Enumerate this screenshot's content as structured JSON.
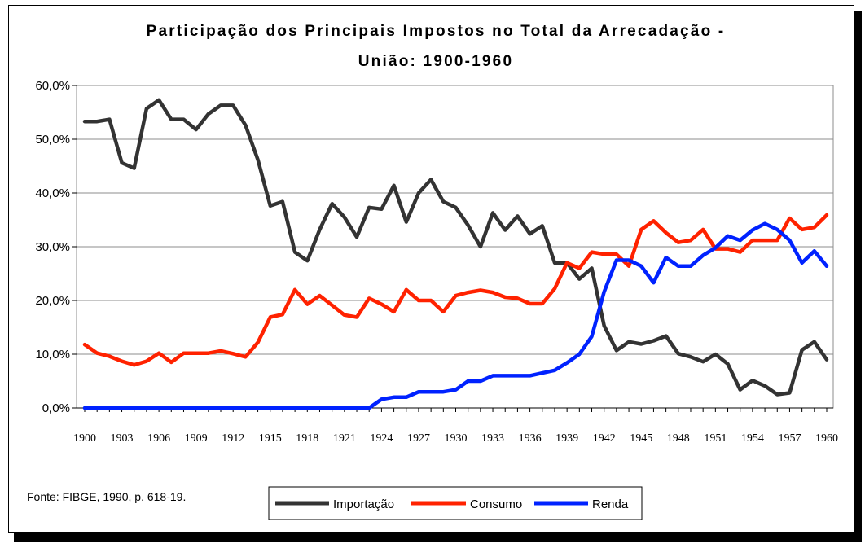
{
  "chart_data": {
    "type": "line",
    "title_lines": [
      "Participação dos Principais Impostos no Total da Arrecadação -",
      "União: 1900-1960"
    ],
    "source": "Fonte: FIBGE, 1990, p. 618-19.",
    "y_tick_labels": [
      "60,0%",
      "50,0%",
      "40,0%",
      "30,0%",
      "20,0%",
      "10,0%",
      "0,0%"
    ],
    "ylim": [
      0,
      60
    ],
    "xlim": [
      1900,
      1960
    ],
    "x_tick_labels": [
      "1900",
      "1903",
      "1906",
      "1909",
      "1912",
      "1915",
      "1918",
      "1921",
      "1924",
      "1927",
      "1930",
      "1933",
      "1936",
      "1939",
      "1942",
      "1945",
      "1948",
      "1951",
      "1954",
      "1957",
      "1960"
    ],
    "grid": "horizontal",
    "legend_position": "bottom",
    "series": [
      {
        "name": "Importação",
        "color": "#333333",
        "x": [
          1900,
          1901,
          1902,
          1903,
          1904,
          1905,
          1906,
          1907,
          1908,
          1909,
          1910,
          1911,
          1912,
          1913,
          1914,
          1915,
          1916,
          1917,
          1918,
          1919,
          1920,
          1921,
          1922,
          1923,
          1924,
          1925,
          1926,
          1927,
          1928,
          1929,
          1930,
          1931,
          1932,
          1933,
          1934,
          1935,
          1936,
          1937,
          1938,
          1939,
          1940,
          1941,
          1942,
          1943,
          1944,
          1945,
          1946,
          1947,
          1948,
          1949,
          1950,
          1951,
          1952,
          1953,
          1954,
          1955,
          1956,
          1957,
          1958,
          1959,
          1960
        ],
        "values": [
          53.3,
          53.3,
          53.7,
          45.6,
          44.6,
          55.7,
          57.3,
          53.7,
          53.7,
          51.8,
          54.7,
          56.3,
          56.3,
          52.6,
          46.2,
          37.6,
          38.4,
          29.0,
          27.4,
          33.2,
          38.0,
          35.5,
          31.8,
          37.3,
          37.0,
          41.4,
          34.6,
          40.0,
          42.5,
          38.4,
          37.3,
          34.0,
          30.0,
          36.3,
          33.1,
          35.7,
          32.4,
          33.9,
          27.0,
          27.0,
          24.0,
          26.0,
          15.3,
          10.7,
          12.3,
          11.9,
          12.5,
          13.4,
          10.1,
          9.5,
          8.6,
          10.0,
          8.2,
          3.4,
          5.1,
          4.1,
          2.5,
          2.8,
          10.8,
          12.3,
          9.0
        ]
      },
      {
        "name": "Consumo",
        "color": "#ff2200",
        "x": [
          1900,
          1901,
          1902,
          1903,
          1904,
          1905,
          1906,
          1907,
          1908,
          1909,
          1910,
          1911,
          1912,
          1913,
          1914,
          1915,
          1916,
          1917,
          1918,
          1919,
          1920,
          1921,
          1922,
          1923,
          1924,
          1925,
          1926,
          1927,
          1928,
          1929,
          1930,
          1931,
          1932,
          1933,
          1934,
          1935,
          1936,
          1937,
          1938,
          1939,
          1940,
          1941,
          1942,
          1943,
          1944,
          1945,
          1946,
          1947,
          1948,
          1949,
          1950,
          1951,
          1952,
          1953,
          1954,
          1955,
          1956,
          1957,
          1958,
          1959,
          1960
        ],
        "values": [
          11.8,
          10.2,
          9.6,
          8.7,
          8.0,
          8.7,
          10.2,
          8.5,
          10.2,
          10.2,
          10.2,
          10.6,
          10.1,
          9.5,
          12.2,
          16.9,
          17.4,
          22.0,
          19.3,
          20.9,
          19.1,
          17.3,
          16.9,
          20.4,
          19.3,
          17.9,
          22.0,
          20.0,
          20.0,
          17.9,
          20.9,
          21.5,
          21.9,
          21.5,
          20.6,
          20.4,
          19.4,
          19.4,
          22.2,
          27.0,
          26.0,
          29.0,
          28.6,
          28.6,
          26.4,
          33.2,
          34.8,
          32.6,
          30.8,
          31.2,
          33.2,
          29.6,
          29.6,
          29.0,
          31.2,
          31.2,
          31.2,
          35.3,
          33.2,
          33.6,
          35.9
        ]
      },
      {
        "name": "Renda",
        "color": "#0022ff",
        "x": [
          1900,
          1901,
          1902,
          1903,
          1904,
          1905,
          1906,
          1907,
          1908,
          1909,
          1910,
          1911,
          1912,
          1913,
          1914,
          1915,
          1916,
          1917,
          1918,
          1919,
          1920,
          1921,
          1922,
          1923,
          1924,
          1925,
          1926,
          1927,
          1928,
          1929,
          1930,
          1931,
          1932,
          1933,
          1934,
          1935,
          1936,
          1937,
          1938,
          1939,
          1940,
          1941,
          1942,
          1943,
          1944,
          1945,
          1946,
          1947,
          1948,
          1949,
          1950,
          1951,
          1952,
          1953,
          1954,
          1955,
          1956,
          1957,
          1958,
          1959,
          1960
        ],
        "values": [
          0,
          0,
          0,
          0,
          0,
          0,
          0,
          0,
          0,
          0,
          0,
          0,
          0,
          0,
          0,
          0,
          0,
          0,
          0,
          0,
          0,
          0,
          0,
          0,
          1.6,
          2.0,
          2.0,
          3.0,
          3.0,
          3.0,
          3.4,
          5.0,
          5.0,
          6.0,
          6.0,
          6.0,
          6.0,
          6.5,
          7.0,
          8.4,
          10.0,
          13.3,
          21.6,
          27.5,
          27.5,
          26.4,
          23.3,
          28.0,
          26.4,
          26.4,
          28.4,
          29.8,
          32.0,
          31.2,
          33.1,
          34.3,
          33.2,
          31.2,
          27.0,
          29.2,
          26.4
        ]
      }
    ]
  }
}
